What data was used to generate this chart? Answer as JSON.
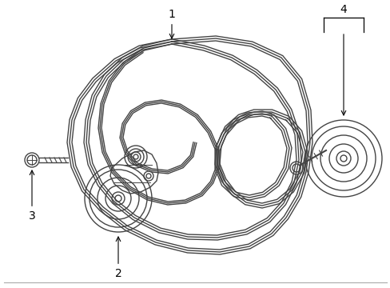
{
  "bg_color": "#ffffff",
  "line_color": "#444444",
  "lw": 1.0,
  "label_fs": 10,
  "border_color": "#aaaaaa"
}
